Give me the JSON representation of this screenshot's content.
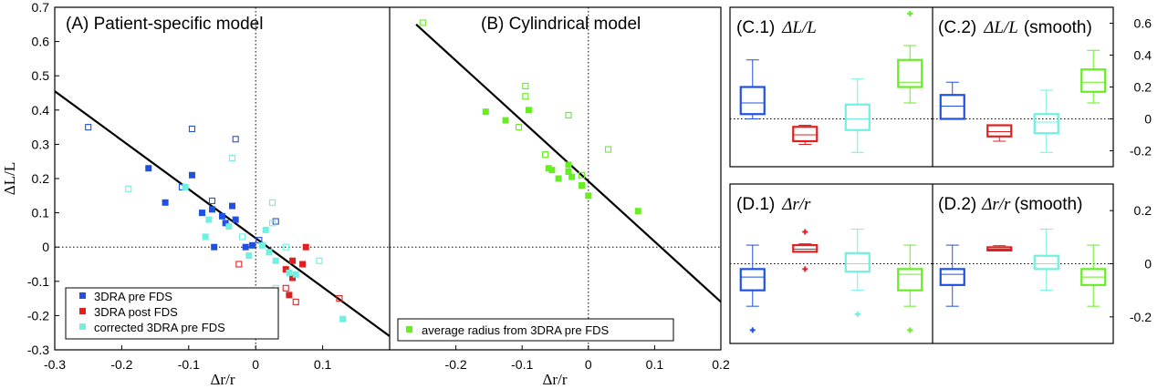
{
  "colors": {
    "pre": "#2050e0",
    "post": "#e02020",
    "corrected": "#70f0e0",
    "average": "#66ee22",
    "fit": "#000000"
  },
  "chart_data": [
    {
      "type": "scatter",
      "title": "(A) Patient-specific model",
      "xlabel": "Δr/r",
      "ylabel": "ΔL/L",
      "xlim": [
        -0.3,
        0.2
      ],
      "ylim": [
        -0.3,
        0.7
      ],
      "xticks": [
        "-0.3",
        "-0.2",
        "-0.1",
        "0",
        "0.1"
      ],
      "yticks": [
        "-0.3",
        "-0.2",
        "-0.1",
        "0",
        "0.1",
        "0.2",
        "0.3",
        "0.4",
        "0.5",
        "0.6",
        "0.7"
      ],
      "reference_lines": {
        "x": 0,
        "y": 0
      },
      "fit_line": [
        [
          -0.3,
          0.455
        ],
        [
          0.2,
          -0.26
        ]
      ],
      "legend_position": "bottom-left",
      "series": [
        {
          "name": "3DRA pre FDS",
          "color_key": "pre",
          "filled": [
            [
              -0.16,
              0.23
            ],
            [
              -0.135,
              0.13
            ],
            [
              -0.095,
              0.21
            ],
            [
              -0.08,
              0.1
            ],
            [
              -0.065,
              0.11
            ],
            [
              -0.05,
              0.09
            ],
            [
              -0.045,
              0.07
            ],
            [
              -0.035,
              0.12
            ],
            [
              -0.03,
              0.08
            ],
            [
              -0.062,
              0.0
            ],
            [
              -0.015,
              0.0
            ],
            [
              -0.005,
              0.005
            ]
          ],
          "open": [
            [
              -0.25,
              0.35
            ],
            [
              -0.095,
              0.345
            ],
            [
              -0.03,
              0.315
            ],
            [
              -0.11,
              0.175
            ],
            [
              -0.065,
              0.135
            ],
            [
              0.005,
              0.02
            ],
            [
              0.03,
              0.075
            ]
          ]
        },
        {
          "name": "3DRA post FDS",
          "color_key": "post",
          "filled": [
            [
              0.055,
              -0.04
            ],
            [
              0.07,
              -0.05
            ],
            [
              0.045,
              -0.065
            ],
            [
              0.055,
              -0.09
            ],
            [
              0.05,
              -0.14
            ],
            [
              0.075,
              0.0
            ]
          ],
          "open": [
            [
              0.125,
              -0.15
            ],
            [
              -0.025,
              -0.05
            ],
            [
              0.06,
              -0.16
            ],
            [
              0.045,
              -0.12
            ]
          ]
        },
        {
          "name": "corrected 3DRA pre FDS",
          "color_key": "corrected",
          "filled": [
            [
              -0.075,
              0.03
            ],
            [
              -0.105,
              0.175
            ],
            [
              -0.07,
              0.08
            ],
            [
              -0.04,
              0.06
            ],
            [
              0.01,
              0.005
            ],
            [
              0.02,
              -0.015
            ],
            [
              0.03,
              -0.04
            ],
            [
              0.05,
              -0.075
            ],
            [
              0.06,
              -0.08
            ],
            [
              0.13,
              -0.21
            ],
            [
              0.015,
              0.05
            ],
            [
              -0.01,
              -0.025
            ]
          ],
          "open": [
            [
              -0.19,
              0.17
            ],
            [
              -0.035,
              0.26
            ],
            [
              0.025,
              0.13
            ],
            [
              0.025,
              0.07
            ],
            [
              0.095,
              -0.04
            ],
            [
              0.045,
              0.0
            ],
            [
              0.03,
              -0.12
            ],
            [
              -0.02,
              0.03
            ]
          ]
        }
      ]
    },
    {
      "type": "scatter",
      "title": "(B) Cylindrical model",
      "xlabel": "Δr/r",
      "xlim": [
        -0.3,
        0.2
      ],
      "ylim": [
        -0.3,
        0.7
      ],
      "xticks": [
        "-0.2",
        "-0.1",
        "0",
        "0.1",
        "0.2"
      ],
      "reference_lines": {
        "x": 0,
        "y": 0
      },
      "fit_line": [
        [
          -0.26,
          0.65
        ],
        [
          0.2,
          -0.16
        ]
      ],
      "legend_position": "bottom-left",
      "series": [
        {
          "name": "average radius from 3DRA pre FDS",
          "color_key": "average",
          "filled": [
            [
              -0.155,
              0.395
            ],
            [
              -0.125,
              0.37
            ],
            [
              -0.09,
              0.4
            ],
            [
              -0.06,
              0.23
            ],
            [
              -0.055,
              0.225
            ],
            [
              -0.045,
              0.2
            ],
            [
              -0.03,
              0.24
            ],
            [
              -0.03,
              0.22
            ],
            [
              -0.025,
              0.205
            ],
            [
              -0.01,
              0.18
            ],
            [
              0.0,
              0.15
            ],
            [
              0.075,
              0.105
            ]
          ],
          "open": [
            [
              -0.25,
              0.655
            ],
            [
              -0.095,
              0.47
            ],
            [
              -0.095,
              0.44
            ],
            [
              -0.03,
              0.385
            ],
            [
              -0.105,
              0.35
            ],
            [
              -0.065,
              0.27
            ],
            [
              0.03,
              0.285
            ],
            [
              -0.01,
              0.21
            ]
          ]
        }
      ]
    },
    {
      "type": "box",
      "title": "(C.1)",
      "quantity": "ΔL/L",
      "ylim": [
        -0.3,
        0.7
      ],
      "boxes": [
        {
          "color_key": "pre",
          "whisker_low": 0.0,
          "q1": 0.03,
          "median": 0.1,
          "q3": 0.2,
          "whisker_high": 0.37
        },
        {
          "color_key": "post",
          "whisker_low": -0.16,
          "q1": -0.14,
          "median": -0.1,
          "q3": -0.05,
          "whisker_high": -0.04
        },
        {
          "color_key": "corrected",
          "whisker_low": -0.21,
          "q1": -0.07,
          "median": 0.0,
          "q3": 0.09,
          "whisker_high": 0.25
        },
        {
          "color_key": "average",
          "whisker_low": 0.1,
          "q1": 0.2,
          "median": 0.23,
          "q3": 0.37,
          "whisker_high": 0.46,
          "outliers": [
            0.66
          ]
        }
      ]
    },
    {
      "type": "box",
      "title": "(C.2)",
      "quantity": "ΔL/L",
      "suffix": "(smooth)",
      "ylim": [
        -0.3,
        0.7
      ],
      "yticks": [
        "-0.2",
        "0",
        "0.2",
        "0.4",
        "0.6"
      ],
      "boxes": [
        {
          "color_key": "pre",
          "whisker_low": 0.0,
          "q1": 0.0,
          "median": 0.08,
          "q3": 0.15,
          "whisker_high": 0.23
        },
        {
          "color_key": "post",
          "whisker_low": -0.14,
          "q1": -0.11,
          "median": -0.08,
          "q3": -0.04,
          "whisker_high": -0.04
        },
        {
          "color_key": "corrected",
          "whisker_low": -0.21,
          "q1": -0.09,
          "median": -0.02,
          "q3": 0.03,
          "whisker_high": 0.18
        },
        {
          "color_key": "average",
          "whisker_low": 0.1,
          "q1": 0.17,
          "median": 0.23,
          "q3": 0.31,
          "whisker_high": 0.43
        }
      ]
    },
    {
      "type": "box",
      "title": "(D.1)",
      "quantity": "Δr/r",
      "ylim": [
        -0.3,
        0.3
      ],
      "boxes": [
        {
          "color_key": "pre",
          "whisker_low": -0.16,
          "q1": -0.1,
          "median": -0.05,
          "q3": -0.02,
          "whisker_high": 0.07,
          "outliers": [
            -0.25
          ]
        },
        {
          "color_key": "post",
          "whisker_low": 0.045,
          "q1": 0.045,
          "median": 0.055,
          "q3": 0.07,
          "whisker_high": 0.075,
          "outliers": [
            0.12,
            -0.02
          ]
        },
        {
          "color_key": "corrected",
          "whisker_low": -0.1,
          "q1": -0.03,
          "median": 0.0,
          "q3": 0.04,
          "whisker_high": 0.13,
          "outliers": [
            -0.19
          ]
        },
        {
          "color_key": "average",
          "whisker_low": -0.16,
          "q1": -0.1,
          "median": -0.04,
          "q3": -0.02,
          "whisker_high": 0.07,
          "outliers": [
            -0.25
          ]
        }
      ]
    },
    {
      "type": "box",
      "title": "(D.2)",
      "quantity": "Δr/r",
      "suffix": "(smooth)",
      "ylim": [
        -0.3,
        0.3
      ],
      "yticks": [
        "-0.2",
        "0",
        "0.2"
      ],
      "boxes": [
        {
          "color_key": "pre",
          "whisker_low": -0.16,
          "q1": -0.08,
          "median": -0.04,
          "q3": -0.02,
          "whisker_high": 0.07
        },
        {
          "color_key": "post",
          "whisker_low": 0.048,
          "q1": 0.05,
          "median": 0.055,
          "q3": 0.062,
          "whisker_high": 0.068
        },
        {
          "color_key": "corrected",
          "whisker_low": -0.1,
          "q1": -0.02,
          "median": 0.0,
          "q3": 0.03,
          "whisker_high": 0.13
        },
        {
          "color_key": "average",
          "whisker_low": -0.16,
          "q1": -0.08,
          "median": -0.05,
          "q3": -0.02,
          "whisker_high": 0.07
        }
      ]
    }
  ]
}
